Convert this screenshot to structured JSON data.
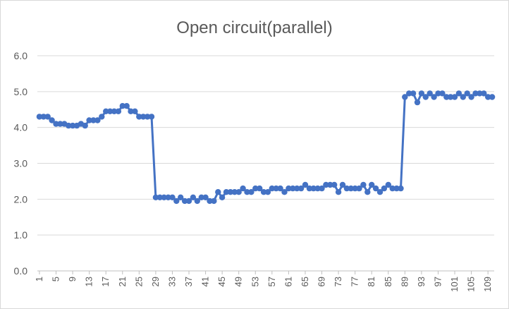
{
  "chart_data": {
    "type": "line",
    "title": "Open circuit(parallel)",
    "xlabel": "",
    "ylabel": "",
    "ylim": [
      0,
      6
    ],
    "yticks": [
      "0.0",
      "1.0",
      "2.0",
      "3.0",
      "4.0",
      "5.0",
      "6.0"
    ],
    "xticks": [
      "1",
      "5",
      "9",
      "13",
      "17",
      "21",
      "25",
      "29",
      "33",
      "37",
      "41",
      "45",
      "49",
      "53",
      "57",
      "61",
      "65",
      "69",
      "73",
      "77",
      "81",
      "85",
      "89",
      "93",
      "97",
      "101",
      "105",
      "109"
    ],
    "grid": true,
    "legend": "none",
    "color": "#4472c4",
    "x": [
      1,
      2,
      3,
      4,
      5,
      6,
      7,
      8,
      9,
      10,
      11,
      12,
      13,
      14,
      15,
      16,
      17,
      18,
      19,
      20,
      21,
      22,
      23,
      24,
      25,
      26,
      27,
      28,
      29,
      30,
      31,
      32,
      33,
      34,
      35,
      36,
      37,
      38,
      39,
      40,
      41,
      42,
      43,
      44,
      45,
      46,
      47,
      48,
      49,
      50,
      51,
      52,
      53,
      54,
      55,
      56,
      57,
      58,
      59,
      60,
      61,
      62,
      63,
      64,
      65,
      66,
      67,
      68,
      69,
      70,
      71,
      72,
      73,
      74,
      75,
      76,
      77,
      78,
      79,
      80,
      81,
      82,
      83,
      84,
      85,
      86,
      87,
      88,
      89,
      90,
      91,
      92,
      93,
      94,
      95,
      96,
      97,
      98,
      99,
      100,
      101,
      102,
      103,
      104,
      105,
      106,
      107,
      108,
      109,
      110
    ],
    "values": [
      4.3,
      4.3,
      4.3,
      4.2,
      4.1,
      4.1,
      4.1,
      4.05,
      4.05,
      4.05,
      4.1,
      4.05,
      4.2,
      4.2,
      4.2,
      4.3,
      4.45,
      4.45,
      4.45,
      4.45,
      4.6,
      4.6,
      4.45,
      4.45,
      4.3,
      4.3,
      4.3,
      4.3,
      2.05,
      2.05,
      2.05,
      2.05,
      2.05,
      1.95,
      2.05,
      1.95,
      1.95,
      2.05,
      1.95,
      2.05,
      2.05,
      1.95,
      1.95,
      2.2,
      2.05,
      2.2,
      2.2,
      2.2,
      2.2,
      2.3,
      2.2,
      2.2,
      2.3,
      2.3,
      2.2,
      2.2,
      2.3,
      2.3,
      2.3,
      2.2,
      2.3,
      2.3,
      2.3,
      2.3,
      2.4,
      2.3,
      2.3,
      2.3,
      2.3,
      2.4,
      2.4,
      2.4,
      2.2,
      2.4,
      2.3,
      2.3,
      2.3,
      2.3,
      2.4,
      2.2,
      2.4,
      2.3,
      2.2,
      2.3,
      2.4,
      2.3,
      2.3,
      2.3,
      4.85,
      4.95,
      4.95,
      4.7,
      4.95,
      4.85,
      4.95,
      4.85,
      4.95,
      4.95,
      4.85,
      4.85,
      4.85,
      4.95,
      4.85,
      4.95,
      4.85,
      4.95,
      4.95,
      4.95,
      4.85,
      4.85
    ]
  }
}
